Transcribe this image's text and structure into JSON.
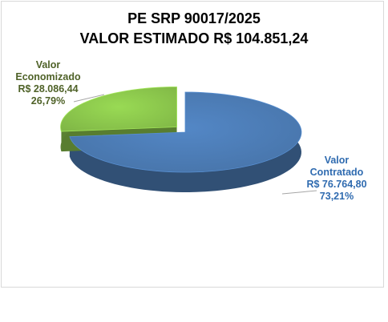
{
  "chart_data": {
    "type": "pie3d",
    "title": "PE SRP 90017/2025",
    "subtitle": "VALOR ESTIMADO  R$ 104.851,24",
    "categories": [
      "Valor Economizado",
      "Valor Contratado"
    ],
    "values": [
      26.79,
      73.21
    ],
    "value_labels": [
      "26,79%",
      "73,21%"
    ],
    "amount_labels": [
      "R$ 28.086,44",
      "R$ 76.764,80"
    ],
    "colors": [
      "#92d050",
      "#4f81bd"
    ],
    "label_colors": [
      "#4f6228",
      "#2f6bb0"
    ]
  }
}
